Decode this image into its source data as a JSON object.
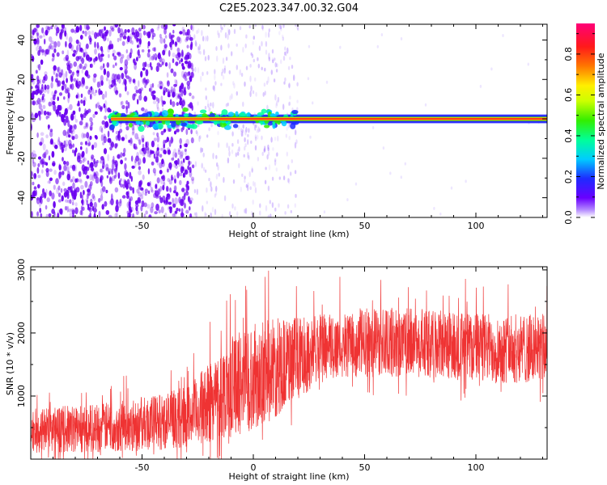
{
  "figure": {
    "title": "C2E5.2023.347.00.32.G04"
  },
  "colors": {
    "snr_line": "#ef3333",
    "frame": "#000000",
    "scatter_point": "#6a00f0",
    "center_band": "#ff2020"
  },
  "chart_data": [
    {
      "type": "heatmap",
      "title": "",
      "xlabel": "Height of straight line (km)",
      "ylabel": "Frequency (Hz)",
      "xlim": [
        -100,
        132
      ],
      "ylim": [
        -50,
        48
      ],
      "xticks": [
        -50,
        0,
        50,
        100
      ],
      "yticks": [
        -40,
        -20,
        0,
        20,
        40
      ],
      "xtick_labels": [
        "-50",
        "0",
        "50",
        "100"
      ],
      "ytick_labels": [
        "-40",
        "-20",
        "0",
        "20",
        "40"
      ],
      "grid": false,
      "description_series": [
        {
          "name": "scattered_noise",
          "x_range": [
            -100,
            -27
          ],
          "y_range": [
            -50,
            48
          ],
          "density": "high"
        },
        {
          "name": "sparse_noise",
          "x_range": [
            -27,
            20
          ],
          "y_range": [
            -50,
            48
          ],
          "density": "low"
        },
        {
          "name": "signal_band",
          "x_range": [
            -64,
            132
          ],
          "y_center": 0,
          "y_halfwidth": 2
        }
      ],
      "colorbar": {
        "label": "Normalized spectral amplitude",
        "range": [
          0.0,
          0.95
        ],
        "ticks": [
          0.0,
          0.2,
          0.4,
          0.6,
          0.8
        ],
        "tick_labels": [
          "0.0",
          "0.2",
          "0.4",
          "0.6",
          "0.8"
        ]
      }
    },
    {
      "type": "line",
      "title": "",
      "xlabel": "Height of straight line (km)",
      "ylabel": "SNR (10 * v/v)",
      "xlim": [
        -100,
        132
      ],
      "ylim": [
        0,
        3050
      ],
      "xticks": [
        -50,
        0,
        50,
        100
      ],
      "yticks": [
        1000,
        2000,
        3000
      ],
      "xtick_labels": [
        "-50",
        "0",
        "50",
        "100"
      ],
      "ytick_labels": [
        "1000",
        "2000",
        "3000"
      ],
      "grid": false,
      "series": [
        {
          "name": "",
          "envelope": {
            "x": [
              -100,
              -80,
              -60,
              -40,
              -28,
              -20,
              -10,
              0,
              10,
              20,
              30,
              50,
              70,
              90,
              110,
              132
            ],
            "mean": [
              450,
              480,
              520,
              600,
              700,
              900,
              1150,
              1300,
              1450,
              1600,
              1750,
              1850,
              1850,
              1800,
              1750,
              1750
            ],
            "spread": [
              350,
              380,
              400,
              450,
              500,
              650,
              800,
              850,
              800,
              650,
              550,
              550,
              550,
              550,
              550,
              550
            ]
          }
        }
      ]
    }
  ]
}
